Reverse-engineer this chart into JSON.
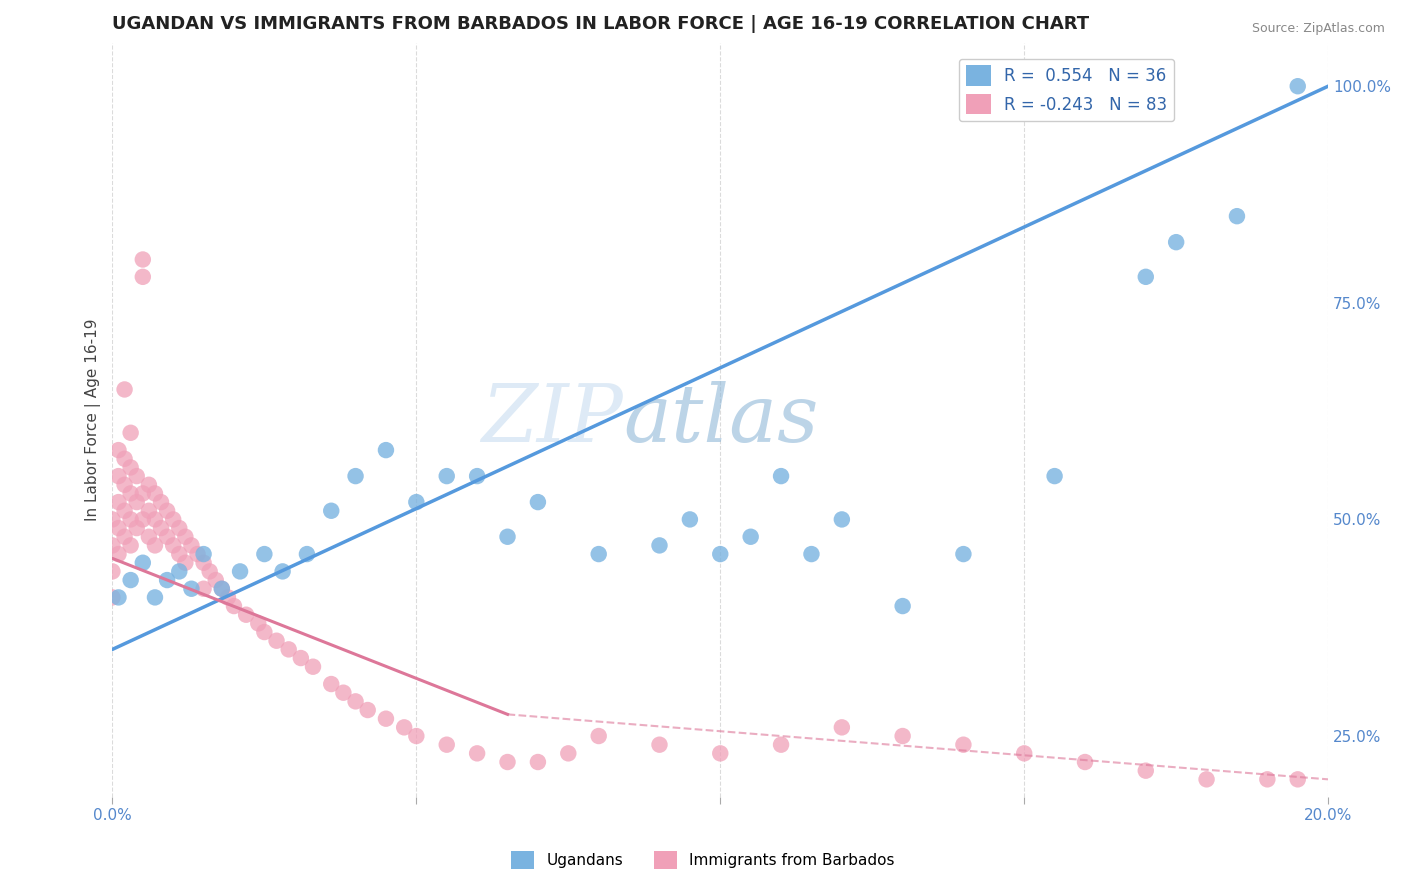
{
  "title": "UGANDAN VS IMMIGRANTS FROM BARBADOS IN LABOR FORCE | AGE 16-19 CORRELATION CHART",
  "source": "Source: ZipAtlas.com",
  "xlabel": "",
  "ylabel": "In Labor Force | Age 16-19",
  "xlim": [
    0.0,
    0.2
  ],
  "ylim": [
    0.18,
    1.05
  ],
  "blue_color": "#7ab3e0",
  "pink_color": "#f0a0b8",
  "trend_blue_color": "#5599dd",
  "trend_pink_color": "#dd7799",
  "legend_r_blue": "R =  0.554",
  "legend_n_blue": "N = 36",
  "legend_r_pink": "R = -0.243",
  "legend_n_pink": "N = 83",
  "watermark_zip": "ZIP",
  "watermark_atlas": "atlas",
  "background_color": "#ffffff",
  "grid_color": "#cccccc",
  "blue_scatter_x": [
    0.001,
    0.003,
    0.005,
    0.007,
    0.009,
    0.011,
    0.013,
    0.015,
    0.018,
    0.021,
    0.025,
    0.028,
    0.032,
    0.036,
    0.04,
    0.045,
    0.05,
    0.055,
    0.06,
    0.065,
    0.07,
    0.08,
    0.09,
    0.095,
    0.1,
    0.105,
    0.11,
    0.115,
    0.12,
    0.13,
    0.14,
    0.155,
    0.17,
    0.175,
    0.185,
    0.195
  ],
  "blue_scatter_y": [
    0.41,
    0.43,
    0.45,
    0.41,
    0.43,
    0.44,
    0.42,
    0.46,
    0.42,
    0.44,
    0.46,
    0.44,
    0.46,
    0.51,
    0.55,
    0.58,
    0.52,
    0.55,
    0.55,
    0.48,
    0.52,
    0.46,
    0.47,
    0.5,
    0.46,
    0.48,
    0.55,
    0.46,
    0.5,
    0.4,
    0.46,
    0.55,
    0.78,
    0.82,
    0.85,
    1.0
  ],
  "pink_scatter_x": [
    0.0,
    0.0,
    0.0,
    0.0,
    0.001,
    0.001,
    0.001,
    0.001,
    0.001,
    0.002,
    0.002,
    0.002,
    0.002,
    0.003,
    0.003,
    0.003,
    0.003,
    0.004,
    0.004,
    0.004,
    0.005,
    0.005,
    0.005,
    0.006,
    0.006,
    0.006,
    0.007,
    0.007,
    0.007,
    0.008,
    0.008,
    0.009,
    0.009,
    0.01,
    0.01,
    0.011,
    0.011,
    0.012,
    0.012,
    0.013,
    0.014,
    0.015,
    0.015,
    0.016,
    0.017,
    0.018,
    0.019,
    0.02,
    0.022,
    0.024,
    0.025,
    0.027,
    0.029,
    0.031,
    0.033,
    0.036,
    0.038,
    0.04,
    0.042,
    0.045,
    0.048,
    0.05,
    0.055,
    0.06,
    0.065,
    0.07,
    0.075,
    0.08,
    0.09,
    0.1,
    0.11,
    0.12,
    0.13,
    0.14,
    0.15,
    0.16,
    0.17,
    0.18,
    0.19,
    0.195,
    0.005,
    0.003,
    0.002
  ],
  "pink_scatter_y": [
    0.5,
    0.47,
    0.44,
    0.41,
    0.58,
    0.55,
    0.52,
    0.49,
    0.46,
    0.57,
    0.54,
    0.51,
    0.48,
    0.56,
    0.53,
    0.5,
    0.47,
    0.55,
    0.52,
    0.49,
    0.78,
    0.53,
    0.5,
    0.54,
    0.51,
    0.48,
    0.53,
    0.5,
    0.47,
    0.52,
    0.49,
    0.51,
    0.48,
    0.5,
    0.47,
    0.49,
    0.46,
    0.48,
    0.45,
    0.47,
    0.46,
    0.45,
    0.42,
    0.44,
    0.43,
    0.42,
    0.41,
    0.4,
    0.39,
    0.38,
    0.37,
    0.36,
    0.35,
    0.34,
    0.33,
    0.31,
    0.3,
    0.29,
    0.28,
    0.27,
    0.26,
    0.25,
    0.24,
    0.23,
    0.22,
    0.22,
    0.23,
    0.25,
    0.24,
    0.23,
    0.24,
    0.26,
    0.25,
    0.24,
    0.23,
    0.22,
    0.21,
    0.2,
    0.2,
    0.2,
    0.8,
    0.6,
    0.65
  ],
  "blue_trend_x0": 0.0,
  "blue_trend_y0": 0.35,
  "blue_trend_x1": 0.2,
  "blue_trend_y1": 1.0,
  "pink_trend_solid_x0": 0.0,
  "pink_trend_solid_y0": 0.455,
  "pink_trend_solid_x1": 0.065,
  "pink_trend_solid_y1": 0.275,
  "pink_trend_dash_x0": 0.065,
  "pink_trend_dash_y0": 0.275,
  "pink_trend_dash_x1": 0.2,
  "pink_trend_dash_y1": 0.2
}
